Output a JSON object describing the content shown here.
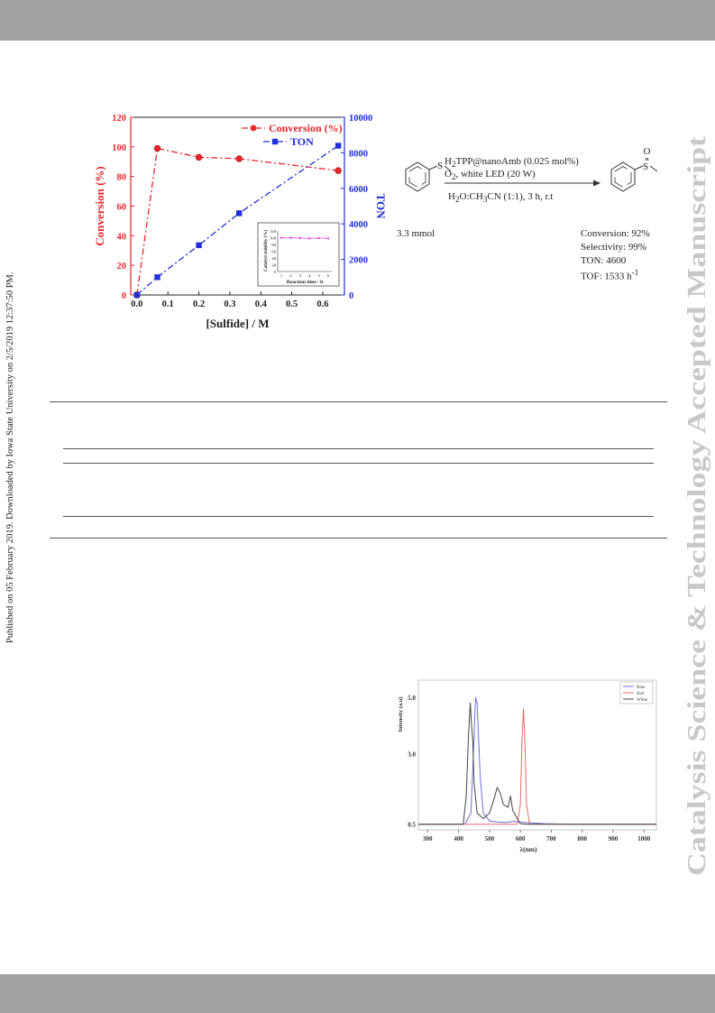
{
  "page": {
    "left_margin_note": "Published on 05 February 2019. Downloaded by Iowa State University on 2/5/2019 12:37:50 PM.",
    "right_watermark": "Catalysis Science & Technology Accepted Manuscript"
  },
  "scheme": {
    "reagent_line1": "H2TPP@nanoAmb (0.025 mol%)",
    "reagent_line2": "O2,  white LED (20 W)",
    "reagent_line3": "H2O:CH3CN (1:1), 3 h, r.t",
    "substrate_amount": "3.3 mmol",
    "product_atom": "O",
    "result_conversion": "Conversion: 92%",
    "result_selectivity": "Selectivity: 99%",
    "result_ton": "TON: 4600",
    "result_tof": "TOF: 1533 h-1"
  },
  "chart_data": [
    {
      "type": "line",
      "xlabel": "[Sulfide] / M",
      "ylabel": "Conversion (%)",
      "y2label": "TON",
      "x": [
        0.0,
        0.066,
        0.2,
        0.33,
        0.65
      ],
      "xticks": [
        "0.0",
        "0.1",
        "0.2",
        "0.3",
        "0.4",
        "0.5",
        "0.6"
      ],
      "yticks": [
        "0",
        "20",
        "40",
        "60",
        "80",
        "100",
        "120"
      ],
      "y2ticks": [
        "0",
        "2000",
        "4000",
        "6000",
        "8000",
        "10000"
      ],
      "xlim": [
        -0.02,
        0.67
      ],
      "ylim": [
        0,
        120
      ],
      "y2lim": [
        0,
        10000
      ],
      "legend_position": "top-right",
      "series": [
        {
          "name": "Conversion (%)",
          "axis": "left",
          "color": "#e8262b",
          "marker": "circle",
          "values": [
            0,
            99,
            93,
            92,
            84
          ]
        },
        {
          "name": "TON",
          "axis": "right",
          "color": "#1f2fd8",
          "marker": "square",
          "values": [
            0,
            1000,
            2800,
            4600,
            8400
          ]
        }
      ],
      "inset": {
        "type": "line",
        "xlabel": "Reaction time / h",
        "ylabel": "Catalyst stability (%)",
        "x": [
          1,
          2,
          3,
          4,
          5,
          6
        ],
        "xticks": [
          "1",
          "2",
          "3",
          "4",
          "5",
          "6"
        ],
        "yticks": [
          "0",
          "20",
          "40",
          "60",
          "80",
          "100",
          "120"
        ],
        "ylim": [
          0,
          120
        ],
        "color": "#e040e0",
        "values": [
          100,
          100,
          99,
          98,
          99,
          98
        ]
      }
    },
    {
      "type": "line",
      "xlabel": "λ(nm)",
      "ylabel": "Intensity (a.u)",
      "xticks": [
        "300",
        "400",
        "500",
        "600",
        "700",
        "800",
        "900",
        "1000"
      ],
      "yticks": [
        "0.5",
        "3.0",
        "5.0"
      ],
      "xlim": [
        270,
        1040
      ],
      "ylim": [
        0.3,
        5.6
      ],
      "legend_position": "top-right",
      "series": [
        {
          "name": "Blue",
          "color": "#6f6fe0",
          "x": [
            270,
            420,
            440,
            450,
            455,
            460,
            470,
            480,
            500,
            525,
            550,
            580,
            620,
            680,
            760,
            900,
            1040
          ],
          "values": [
            0.5,
            0.5,
            0.9,
            3.5,
            5.0,
            4.8,
            2.2,
            0.9,
            0.62,
            0.58,
            0.56,
            0.6,
            0.56,
            0.52,
            0.5,
            0.5,
            0.5
          ]
        },
        {
          "name": "Red",
          "color": "#e86a6a",
          "x": [
            270,
            590,
            600,
            605,
            610,
            615,
            620,
            630,
            1040
          ],
          "values": [
            0.5,
            0.5,
            1.2,
            3.4,
            4.6,
            3.3,
            1.2,
            0.5,
            0.5
          ]
        },
        {
          "name": "White",
          "color": "#444444",
          "x": [
            270,
            415,
            425,
            432,
            438,
            442,
            446,
            450,
            460,
            480,
            500,
            515,
            525,
            535,
            545,
            560,
            568,
            575,
            585,
            600,
            620,
            1040
          ],
          "values": [
            0.5,
            0.5,
            1.5,
            3.6,
            4.8,
            4.0,
            3.5,
            2.0,
            0.9,
            0.7,
            0.9,
            1.4,
            1.8,
            1.6,
            1.2,
            1.1,
            1.5,
            1.0,
            0.8,
            0.52,
            0.5,
            0.5
          ]
        }
      ]
    }
  ]
}
